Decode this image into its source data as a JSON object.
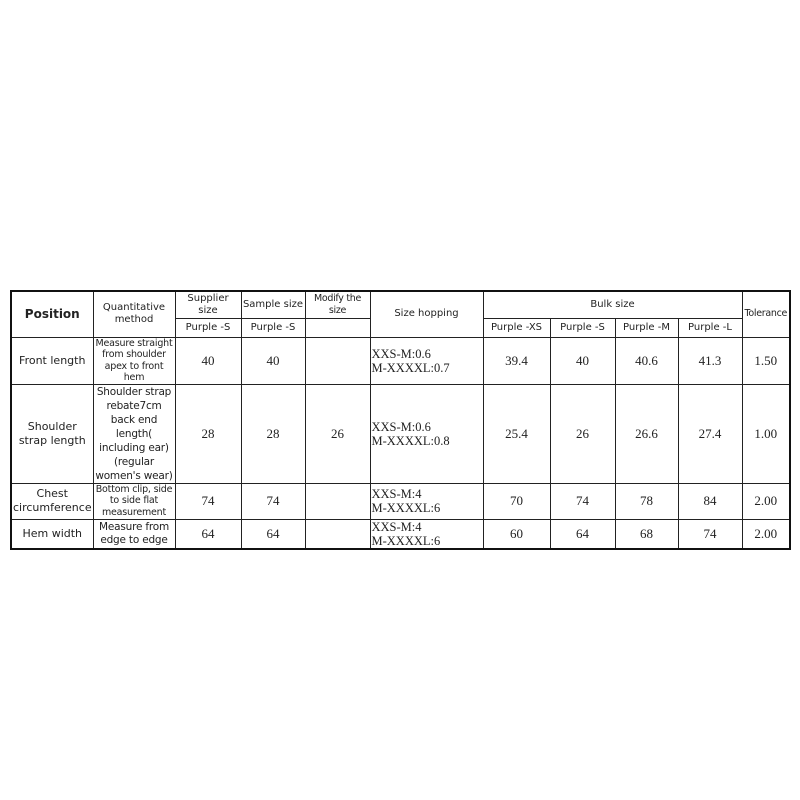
{
  "table": {
    "headers": {
      "position": "Position",
      "method": "Quantitative method",
      "supplier_size": "Supplier size",
      "sample_size": "Sample size",
      "modify_size": "Modify the size",
      "size_hopping": "Size hopping",
      "bulk_size": "Bulk size",
      "tolerance": "Tolerance",
      "supplier_sub": "Purple -S",
      "sample_sub": "Purple -S",
      "bulk_sizes": [
        "Purple -XS",
        "Purple -S",
        "Purple -M",
        "Purple -L"
      ]
    },
    "rows": [
      {
        "position": "Front length",
        "method": "Measure straight from shoulder apex to front hem",
        "supplier": "40",
        "sample": "40",
        "modify": "",
        "hop1": "XXS-M:0.6",
        "hop2": "M-XXXXL:0.7",
        "bulk": [
          "39.4",
          "40",
          "40.6",
          "41.3"
        ],
        "tolerance": "1.50"
      },
      {
        "position": "Shoulder strap length",
        "method": "Shoulder strap rebate7cm back end length( including ear) (regular women's wear)",
        "supplier": "28",
        "sample": "28",
        "modify": "26",
        "hop1": "XXS-M:0.6",
        "hop2": "M-XXXXL:0.8",
        "bulk": [
          "25.4",
          "26",
          "26.6",
          "27.4"
        ],
        "tolerance": "1.00"
      },
      {
        "position": "Chest circumference",
        "method": "Bottom clip, side to side flat measurement",
        "supplier": "74",
        "sample": "74",
        "modify": "",
        "hop1": "XXS-M:4",
        "hop2": "M-XXXXL:6",
        "bulk": [
          "70",
          "74",
          "78",
          "84"
        ],
        "tolerance": "2.00"
      },
      {
        "position": "Hem width",
        "method": "Measure from edge to edge",
        "supplier": "64",
        "sample": "64",
        "modify": "",
        "hop1": "XXS-M:4",
        "hop2": "M-XXXXL:6",
        "bulk": [
          "60",
          "64",
          "68",
          "74"
        ],
        "tolerance": "2.00"
      }
    ]
  }
}
